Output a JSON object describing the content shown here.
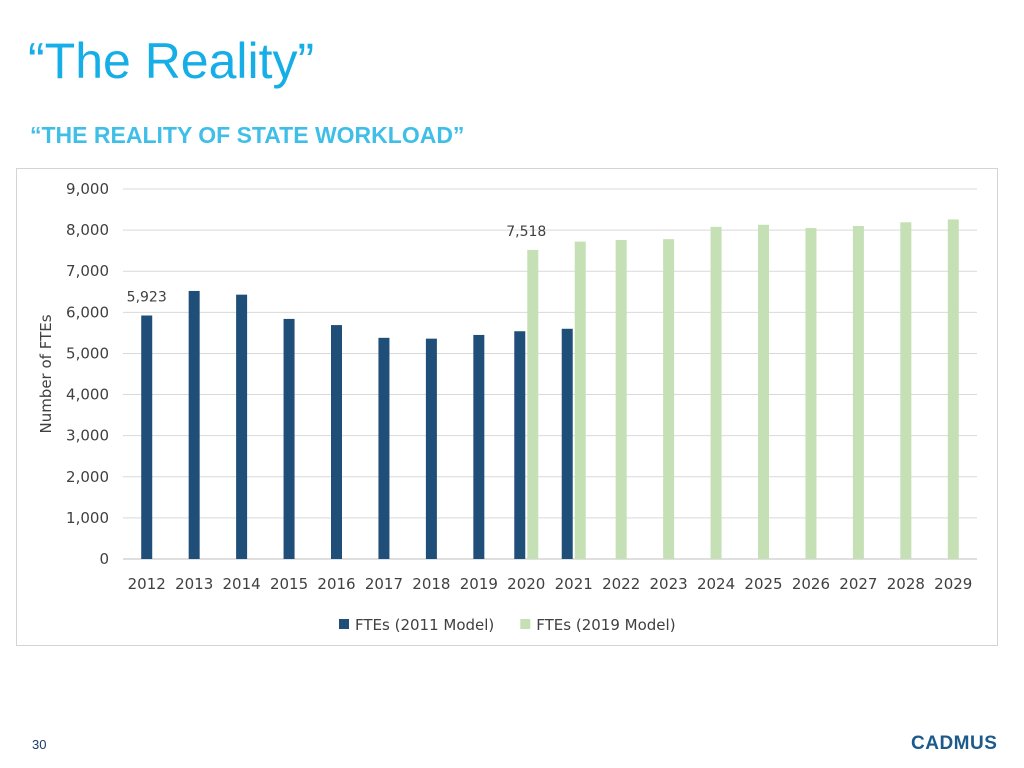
{
  "slide": {
    "title": "“The Reality”",
    "subtitle": "“THE REALITY OF STATE WORKLOAD”",
    "page_number": "30",
    "logo_text": "CADMUS",
    "colors": {
      "title": "#16aee6",
      "subtitle": "#3fbfe8",
      "logo": "#1c5a8c"
    }
  },
  "chart_data": {
    "type": "bar",
    "ylabel": "Number of FTEs",
    "ylim": [
      0,
      9000
    ],
    "yticks": [
      "0",
      "1,000",
      "2,000",
      "3,000",
      "4,000",
      "5,000",
      "6,000",
      "7,000",
      "8,000",
      "9,000"
    ],
    "grid": true,
    "legend_position": "bottom",
    "categories": [
      "2012",
      "2013",
      "2014",
      "2015",
      "2016",
      "2017",
      "2018",
      "2019",
      "2020",
      "2021",
      "2022",
      "2023",
      "2024",
      "2025",
      "2026",
      "2027",
      "2028",
      "2029"
    ],
    "series": [
      {
        "name": "FTEs (2011 Model)",
        "color": "#1f4e79",
        "values": [
          5923,
          6520,
          6430,
          5840,
          5690,
          5380,
          5360,
          5450,
          5540,
          5600,
          null,
          null,
          null,
          null,
          null,
          null,
          null,
          null
        ]
      },
      {
        "name": "FTEs (2019 Model)",
        "color": "#c5e0b4",
        "values": [
          null,
          null,
          null,
          null,
          null,
          null,
          null,
          null,
          7518,
          7720,
          7760,
          7780,
          8080,
          8130,
          8050,
          8100,
          8190,
          8260
        ]
      }
    ],
    "annotations": [
      {
        "series": 0,
        "category": "2012",
        "text": "5,923"
      },
      {
        "series": 1,
        "category": "2020",
        "text": "7,518"
      }
    ]
  }
}
